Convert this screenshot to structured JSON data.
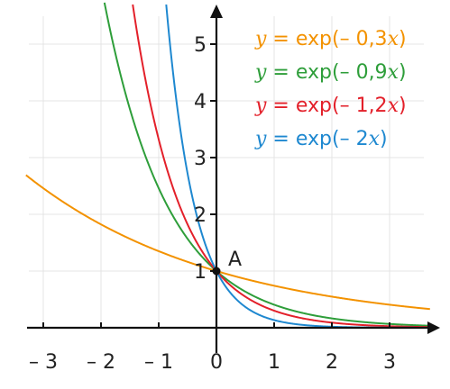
{
  "chart_data": {
    "type": "line",
    "xlim": [
      -3.3,
      3.7
    ],
    "ylim": [
      0,
      5.5
    ],
    "x_ticks": [
      -3,
      -2,
      -1,
      0,
      1,
      2,
      3
    ],
    "x_tick_labels": [
      "– 3",
      "– 2",
      "– 1",
      "0",
      "1",
      "2",
      "3"
    ],
    "y_ticks": [
      1,
      2,
      3,
      4,
      5
    ],
    "y_tick_labels": [
      "1",
      "2",
      "3",
      "4",
      "5"
    ],
    "grid": true,
    "legend_position": "top-right",
    "series": [
      {
        "k": -0.3,
        "color": "#f39200",
        "label_parts": {
          "lhs": "y",
          "eq": " = ",
          "fn": "exp(– 0,3",
          "var": "x",
          "close": ")"
        }
      },
      {
        "k": -0.9,
        "color": "#2e9e3a",
        "label_parts": {
          "lhs": "y",
          "eq": " = ",
          "fn": "exp(– 0,9",
          "var": "x",
          "close": ")"
        }
      },
      {
        "k": -1.2,
        "color": "#e3202a",
        "label_parts": {
          "lhs": "y",
          "eq": " = ",
          "fn": "exp(– 1,2",
          "var": "x",
          "close": ")"
        }
      },
      {
        "k": -2,
        "color": "#1e88d0",
        "label_parts": {
          "lhs": "y",
          "eq": " = ",
          "fn": "exp(– 2",
          "var": "x",
          "close": ")"
        }
      }
    ],
    "point": {
      "label": "A",
      "x": 0,
      "y": 1
    }
  }
}
